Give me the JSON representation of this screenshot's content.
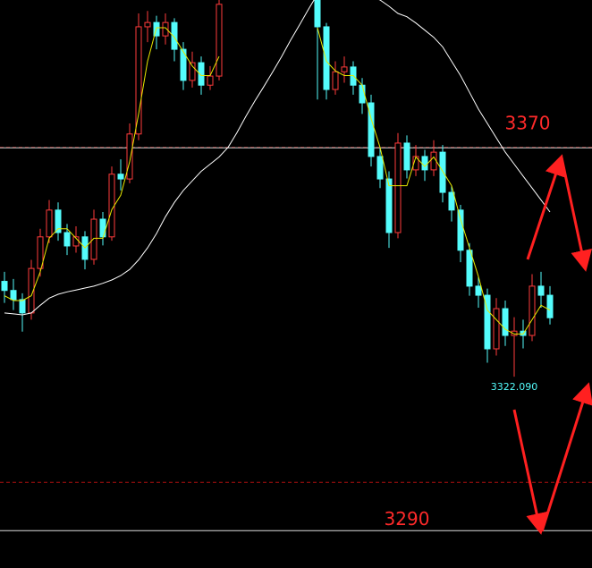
{
  "chart_data": {
    "type": "candlestick",
    "ylim": [
      3282.1,
      3400.8
    ],
    "up_color": "#ff3b3b",
    "down_color": "#54fcfc",
    "open": [
      3342.0,
      3340.1,
      3338.2,
      3335.4,
      3344.7,
      3351.3,
      3356.9,
      3352.2,
      3349.4,
      3351.3,
      3346.6,
      3355.0,
      3351.3,
      3364.4,
      3363.4,
      3372.8,
      3395.2,
      3396.1,
      3393.3,
      3396.1,
      3390.5,
      3384.0,
      3387.7,
      3383.0,
      3384.9,
      null,
      null,
      null,
      null,
      null,
      null,
      null,
      null,
      null,
      null,
      3401.0,
      3395.2,
      3382.1,
      3385.8,
      3386.8,
      3383.0,
      3379.3,
      3368.1,
      3363.4,
      3352.2,
      3370.9,
      3365.3,
      3368.1,
      3365.3,
      3369.0,
      3360.6,
      3356.9,
      3348.5,
      3341.0,
      3339.1,
      3327.9,
      3336.3,
      3330.7,
      3331.6,
      3330.7,
      3341.0,
      3339.1
    ],
    "high": [
      3344.0,
      3342.5,
      3339.5,
      3346.5,
      3353.0,
      3359.0,
      3358.5,
      3354.0,
      3353.5,
      3352.5,
      3357.0,
      3356.5,
      3366.0,
      3367.5,
      3375.0,
      3398.0,
      3398.5,
      3397.5,
      3398.0,
      3397.0,
      3392.0,
      3390.0,
      3389.0,
      3387.0,
      3402.0,
      null,
      null,
      null,
      null,
      null,
      null,
      null,
      null,
      null,
      null,
      3402.0,
      3396.0,
      3388.0,
      3389.0,
      3388.0,
      3384.5,
      3381.0,
      3370.0,
      3365.0,
      3373.0,
      3372.5,
      3370.5,
      3369.5,
      3371.5,
      3370.5,
      3362.0,
      3358.0,
      3350.0,
      3343.0,
      3340.5,
      3338.5,
      3338.0,
      3334.5,
      3334.0,
      3343.5,
      3344.0,
      3341.0
    ],
    "low": [
      3337.5,
      3336.0,
      3331.5,
      3334.0,
      3343.0,
      3350.0,
      3350.5,
      3347.5,
      3348.0,
      3344.5,
      3345.5,
      3349.5,
      3350.5,
      3361.0,
      3362.5,
      3371.5,
      3392.0,
      3390.5,
      3391.5,
      3388.0,
      3382.0,
      3382.5,
      3381.0,
      3382.0,
      3384.0,
      null,
      null,
      null,
      null,
      null,
      null,
      null,
      null,
      null,
      null,
      3380.0,
      3380.0,
      3381.0,
      3383.5,
      3381.0,
      3377.0,
      3366.0,
      3361.5,
      3349.0,
      3351.0,
      3363.5,
      3364.0,
      3363.0,
      3364.0,
      3358.5,
      3354.5,
      3346.0,
      3339.0,
      3336.5,
      3325.0,
      3326.5,
      3328.5,
      3322.09,
      3328.0,
      3329.5,
      3336.5,
      3333.0
    ],
    "close": [
      3340.1,
      3338.2,
      3335.4,
      3344.7,
      3351.3,
      3356.9,
      3352.2,
      3349.4,
      3351.3,
      3346.6,
      3355.0,
      3351.3,
      3364.4,
      3363.4,
      3372.8,
      3395.2,
      3396.1,
      3393.3,
      3396.1,
      3390.5,
      3384.0,
      3387.7,
      3383.0,
      3384.9,
      3399.9,
      null,
      null,
      null,
      null,
      null,
      null,
      null,
      null,
      null,
      null,
      3395.2,
      3382.1,
      3385.8,
      3386.8,
      3383.0,
      3379.3,
      3368.1,
      3363.4,
      3352.2,
      3370.9,
      3365.3,
      3368.1,
      3365.3,
      3369.0,
      3360.6,
      3356.9,
      3348.5,
      3341.0,
      3339.1,
      3327.9,
      3336.3,
      3330.7,
      3331.6,
      3330.7,
      3341.0,
      3339.1,
      3334.4
    ],
    "lines": [
      {
        "color": "#e8e800",
        "values": [
          3339,
          3338,
          3338,
          3339,
          3344,
          3351,
          3353,
          3353,
          3351,
          3349,
          3351,
          3351,
          3357,
          3360,
          3367,
          3377,
          3388,
          3395,
          3395,
          3393,
          3390,
          3387,
          3385,
          3385,
          3389,
          null,
          null,
          null,
          null,
          null,
          null,
          null,
          null,
          null,
          null,
          3395,
          3388,
          3386,
          3385,
          3385,
          3383,
          3376,
          3370,
          3362,
          3362,
          3362,
          3368,
          3366,
          3368,
          3365,
          3362,
          3355,
          3349,
          3343,
          3336,
          3334,
          3332,
          3331,
          3331,
          3334,
          3337,
          3336
        ]
      },
      {
        "color": "#ffffff",
        "values": [
          3335.4,
          3335.2,
          3335.0,
          3335.4,
          3337,
          3338.5,
          3339.3,
          3339.8,
          3340.2,
          3340.6,
          3341,
          3341.6,
          3342.3,
          3343.2,
          3344.5,
          3346.5,
          3349,
          3352,
          3355.5,
          3358.5,
          3361,
          3363,
          3365,
          3366.5,
          3368,
          3370,
          3373.1,
          3376.5,
          3379.7,
          3382.7,
          3385.8,
          3389,
          3392.4,
          3395.6,
          3398.9,
          3402,
          3403,
          3404,
          3404,
          3403,
          3402,
          3401.5,
          3400.8,
          3399.5,
          3398,
          3397.3,
          3396,
          3394.5,
          3393,
          3391,
          3388,
          3385,
          3381.5,
          3378,
          3375,
          3372,
          3369,
          3366.5,
          3364,
          3361.5,
          3359,
          3356.5
        ]
      }
    ],
    "levels": [
      3370,
      3290
    ],
    "dashed_levels": [
      3370,
      3300
    ],
    "annotation": {
      "index": 57,
      "value": 3322.09,
      "label": "3322.090"
    }
  }
}
